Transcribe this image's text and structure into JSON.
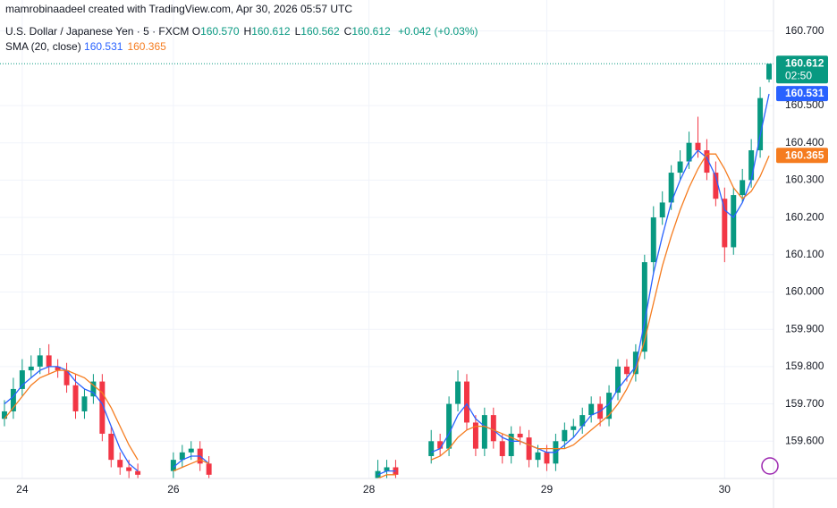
{
  "header": {
    "caption": "mamrobinaadeel created with TradingView.com, Apr 30, 2026 05:57 UTC"
  },
  "chart_data": {
    "type": "candlestick",
    "title": "U.S. Dollar / Japanese Yen · 5 · FXCM",
    "ohlc_legend": [
      {
        "key": "O",
        "value": {
          "value": 160.57,
          "label": "160.570"
        }
      },
      {
        "key": "H",
        "value": {
          "value": 160.612,
          "label": "160.612"
        }
      },
      {
        "key": "L",
        "value": {
          "value": 160.562,
          "label": "160.562"
        }
      },
      {
        "key": "C",
        "value": {
          "value": 160.612,
          "label": "160.612"
        }
      }
    ],
    "change": {
      "value": 0.042,
      "label": "+0.042"
    },
    "change_pct": {
      "value": 0.03,
      "label": "(+0.03%)"
    },
    "price_label": {
      "value": 160.612,
      "label": "160.612"
    },
    "countdown": "02:50",
    "up_color": "#089981",
    "down_color": "#f23645",
    "open": [
      159.66,
      159.68,
      159.74,
      159.79,
      159.8,
      159.83,
      159.8,
      159.79,
      159.75,
      159.68,
      159.72,
      159.76,
      159.62,
      159.55,
      159.53,
      159.52,
      null,
      null,
      null,
      159.52,
      159.55,
      159.57,
      159.58,
      159.54,
      null,
      null,
      null,
      null,
      null,
      null,
      null,
      null,
      null,
      null,
      null,
      null,
      null,
      null,
      null,
      null,
      null,
      null,
      159.5,
      159.52,
      159.53,
      null,
      null,
      null,
      159.56,
      159.6,
      159.58,
      159.7,
      159.76,
      159.65,
      159.58,
      159.67,
      159.6,
      159.56,
      159.62,
      159.61,
      159.55,
      159.57,
      159.54,
      159.6,
      159.63,
      159.64,
      159.67,
      159.7,
      159.66,
      159.73,
      159.8,
      159.78,
      159.84,
      160.08,
      160.2,
      160.24,
      160.32,
      160.35,
      160.4,
      160.38,
      160.32,
      160.25,
      160.12,
      160.26,
      160.3,
      160.38,
      160.57
    ],
    "high": [
      159.71,
      159.77,
      159.82,
      159.83,
      159.85,
      159.86,
      159.82,
      159.81,
      159.78,
      159.74,
      159.78,
      159.78,
      159.64,
      159.57,
      159.55,
      159.54,
      null,
      null,
      null,
      159.57,
      159.59,
      159.6,
      159.6,
      159.56,
      null,
      null,
      null,
      null,
      null,
      null,
      null,
      null,
      null,
      null,
      null,
      null,
      null,
      null,
      null,
      null,
      null,
      null,
      159.55,
      159.55,
      159.55,
      null,
      null,
      null,
      159.63,
      159.62,
      159.72,
      159.79,
      159.78,
      159.67,
      159.69,
      159.69,
      159.62,
      159.64,
      159.64,
      159.63,
      159.59,
      159.59,
      159.62,
      159.65,
      159.66,
      159.69,
      159.72,
      159.72,
      159.75,
      159.82,
      159.82,
      159.86,
      160.1,
      160.23,
      160.27,
      160.34,
      160.38,
      160.43,
      160.47,
      160.41,
      160.35,
      160.28,
      160.28,
      160.33,
      160.41,
      160.55,
      160.612
    ],
    "low": [
      159.64,
      159.66,
      159.72,
      159.77,
      159.78,
      159.78,
      159.77,
      159.73,
      159.66,
      159.66,
      159.7,
      159.6,
      159.53,
      159.51,
      159.5,
      159.49,
      null,
      null,
      null,
      159.5,
      159.53,
      159.55,
      159.52,
      159.49,
      null,
      null,
      null,
      null,
      null,
      null,
      null,
      null,
      null,
      null,
      null,
      null,
      null,
      null,
      null,
      null,
      null,
      null,
      159.48,
      159.5,
      159.49,
      null,
      null,
      null,
      159.54,
      159.56,
      159.56,
      159.68,
      159.63,
      159.56,
      159.56,
      159.58,
      159.54,
      159.54,
      159.59,
      159.53,
      159.53,
      159.52,
      159.52,
      159.58,
      159.61,
      159.62,
      159.65,
      159.64,
      159.64,
      159.71,
      159.76,
      159.76,
      159.82,
      160.05,
      160.18,
      160.22,
      160.3,
      160.33,
      160.36,
      160.3,
      160.23,
      160.08,
      160.1,
      160.24,
      160.28,
      160.36,
      160.562
    ],
    "close": [
      159.68,
      159.74,
      159.79,
      159.8,
      159.83,
      159.8,
      159.79,
      159.75,
      159.68,
      159.72,
      159.76,
      159.62,
      159.55,
      159.53,
      159.52,
      159.51,
      null,
      null,
      null,
      159.55,
      159.57,
      159.58,
      159.54,
      159.51,
      null,
      null,
      null,
      null,
      null,
      null,
      null,
      null,
      null,
      null,
      null,
      null,
      null,
      null,
      null,
      null,
      null,
      null,
      159.52,
      159.53,
      159.51,
      null,
      null,
      null,
      159.6,
      159.58,
      159.7,
      159.76,
      159.65,
      159.58,
      159.67,
      159.6,
      159.56,
      159.62,
      159.61,
      159.55,
      159.57,
      159.54,
      159.6,
      159.63,
      159.64,
      159.67,
      159.7,
      159.66,
      159.73,
      159.8,
      159.78,
      159.84,
      160.08,
      160.2,
      160.24,
      160.32,
      160.35,
      160.4,
      160.38,
      160.32,
      160.25,
      160.12,
      160.26,
      160.3,
      160.38,
      160.52,
      160.612
    ],
    "indicator": "SMA (20, close)",
    "series": [
      {
        "color": "#2962ff",
        "last_label": {
          "value": 160.531,
          "label": "160.531"
        },
        "values": [
          159.7,
          159.72,
          159.75,
          159.77,
          159.79,
          159.8,
          159.8,
          159.79,
          159.76,
          159.74,
          159.73,
          159.7,
          159.64,
          159.58,
          159.54,
          159.52,
          null,
          null,
          null,
          159.53,
          159.55,
          159.56,
          159.56,
          159.54,
          null,
          null,
          null,
          null,
          null,
          null,
          null,
          null,
          null,
          null,
          null,
          null,
          null,
          null,
          null,
          null,
          null,
          null,
          159.51,
          159.52,
          159.52,
          null,
          null,
          null,
          159.57,
          159.58,
          159.62,
          159.67,
          159.7,
          159.66,
          159.64,
          159.63,
          159.61,
          159.6,
          159.6,
          159.59,
          159.58,
          159.57,
          159.57,
          159.59,
          159.61,
          159.64,
          159.67,
          159.68,
          159.7,
          159.74,
          159.77,
          159.8,
          159.92,
          160.05,
          160.15,
          160.24,
          160.3,
          160.35,
          160.38,
          160.36,
          160.31,
          160.22,
          160.2,
          160.24,
          160.3,
          160.42,
          160.531
        ]
      },
      {
        "color": "#f57c1f",
        "last_label": {
          "value": 160.365,
          "label": "160.365"
        },
        "values": [
          159.66,
          159.69,
          159.72,
          159.75,
          159.77,
          159.78,
          159.79,
          159.79,
          159.78,
          159.77,
          159.75,
          159.73,
          159.69,
          159.64,
          159.59,
          159.55,
          null,
          null,
          null,
          159.52,
          159.53,
          159.54,
          159.55,
          159.54,
          null,
          null,
          null,
          null,
          null,
          null,
          null,
          null,
          null,
          null,
          null,
          null,
          null,
          null,
          null,
          null,
          null,
          null,
          159.5,
          159.51,
          159.51,
          null,
          null,
          null,
          159.55,
          159.56,
          159.58,
          159.61,
          159.63,
          159.64,
          159.64,
          159.63,
          159.62,
          159.61,
          159.6,
          159.59,
          159.58,
          159.58,
          159.58,
          159.58,
          159.59,
          159.61,
          159.63,
          159.65,
          159.67,
          159.7,
          159.74,
          159.79,
          159.87,
          159.97,
          160.07,
          160.15,
          160.22,
          160.28,
          160.33,
          160.37,
          160.37,
          160.33,
          160.28,
          160.25,
          160.27,
          160.31,
          160.365
        ]
      }
    ],
    "xlim": [
      -0.5,
      86.5
    ],
    "xticks": [
      {
        "value": 2,
        "label": "24"
      },
      {
        "value": 19,
        "label": "26"
      },
      {
        "value": 41,
        "label": "28"
      },
      {
        "value": 61,
        "label": "29"
      },
      {
        "value": 81,
        "label": "30"
      }
    ],
    "ylim": [
      159.5,
      160.735
    ],
    "yticks": [
      {
        "value": 160.7,
        "label": "160.700"
      },
      {
        "value": 160.5,
        "label": "160.500"
      },
      {
        "value": 160.4,
        "label": "160.400"
      },
      {
        "value": 160.3,
        "label": "160.300"
      },
      {
        "value": 160.2,
        "label": "160.200"
      },
      {
        "value": 160.1,
        "label": "160.100"
      },
      {
        "value": 160.0,
        "label": "160.000"
      },
      {
        "value": 159.9,
        "label": "159.900"
      },
      {
        "value": 159.8,
        "label": "159.800"
      },
      {
        "value": 159.7,
        "label": "159.700"
      },
      {
        "value": 159.6,
        "label": "159.600"
      }
    ],
    "grid": true
  }
}
